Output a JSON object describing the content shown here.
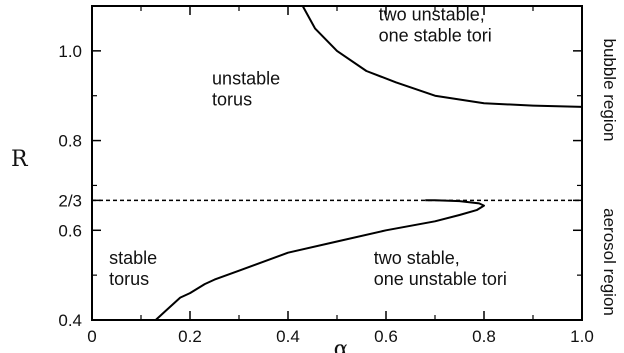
{
  "chart_data": {
    "type": "line",
    "title": "",
    "xlabel": "α",
    "ylabel": "R",
    "xlim": [
      0,
      1.0
    ],
    "ylim": [
      0.4,
      1.1
    ],
    "x_ticks": [
      {
        "value": 0,
        "label": "0"
      },
      {
        "value": 0.2,
        "label": "0.2"
      },
      {
        "value": 0.4,
        "label": "0.4"
      },
      {
        "value": 0.6,
        "label": "0.6"
      },
      {
        "value": 0.8,
        "label": "0.8"
      },
      {
        "value": 1.0,
        "label": "1.0"
      }
    ],
    "y_ticks": [
      {
        "value": 0.4,
        "label": "0.4"
      },
      {
        "value": 0.6,
        "label": "0.6"
      },
      {
        "value": 0.6667,
        "label": "2/3"
      },
      {
        "value": 0.8,
        "label": "0.8"
      },
      {
        "value": 1.0,
        "label": "1.0"
      }
    ],
    "x_minor_ticks": [
      0.1,
      0.3,
      0.5,
      0.7,
      0.9
    ],
    "y_minor_ticks": [
      0.5,
      0.7,
      0.9
    ],
    "grid": false,
    "reference_line": {
      "y": 0.6667,
      "style": "dashed"
    },
    "series": [
      {
        "style": "solid",
        "x": [
          0.43,
          0.455,
          0.5,
          0.56,
          0.62,
          0.7,
          0.8,
          0.9,
          1.0
        ],
        "y": [
          1.1,
          1.05,
          1.0,
          0.955,
          0.93,
          0.9,
          0.883,
          0.878,
          0.875
        ]
      },
      {
        "style": "solid",
        "x": [
          0.13,
          0.15,
          0.18,
          0.2,
          0.23,
          0.25,
          0.3,
          0.4,
          0.5,
          0.6,
          0.7,
          0.75,
          0.785,
          0.8,
          0.79,
          0.75,
          0.7,
          0.68
        ],
        "y": [
          0.4,
          0.42,
          0.45,
          0.46,
          0.48,
          0.49,
          0.51,
          0.55,
          0.575,
          0.6,
          0.62,
          0.634,
          0.645,
          0.655,
          0.66,
          0.665,
          0.667,
          0.667
        ]
      }
    ],
    "annotations": [
      {
        "id": "unstable-torus",
        "lines": [
          "unstable",
          "torus"
        ],
        "x": 0.245,
        "y": 0.925
      },
      {
        "id": "two-unstable",
        "lines": [
          "two unstable,",
          "one stable tori"
        ],
        "x": 0.585,
        "y": 1.068
      },
      {
        "id": "stable-torus",
        "lines": [
          "stable",
          "torus"
        ],
        "x": 0.035,
        "y": 0.525
      },
      {
        "id": "two-stable",
        "lines": [
          "two stable,",
          "one unstable tori"
        ],
        "x": 0.575,
        "y": 0.525
      }
    ],
    "side_labels": [
      "bubble region",
      "aerosol region"
    ]
  }
}
